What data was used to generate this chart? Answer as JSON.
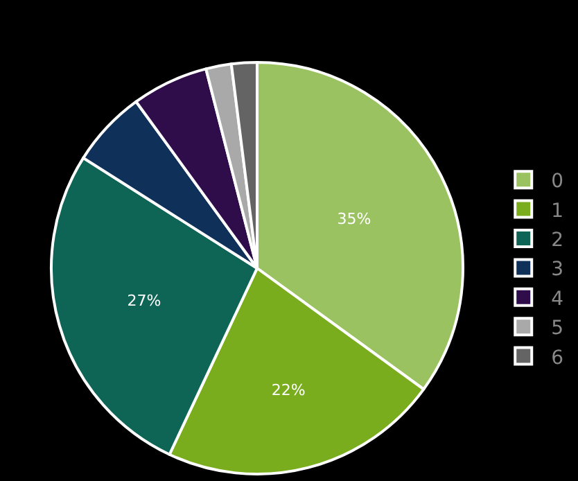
{
  "chart_data": {
    "type": "pie",
    "categories": [
      "0",
      "1",
      "2",
      "3",
      "4",
      "5",
      "6"
    ],
    "values": [
      35,
      22,
      27,
      6,
      6,
      2,
      2
    ],
    "colors": [
      "#9bc261",
      "#7aad1e",
      "#0e6556",
      "#0f3059",
      "#2f0c4a",
      "#a9a9a9",
      "#646464"
    ],
    "value_labels": [
      "35%",
      "22%",
      "27%",
      null,
      null,
      null,
      null
    ],
    "legend": "right"
  }
}
